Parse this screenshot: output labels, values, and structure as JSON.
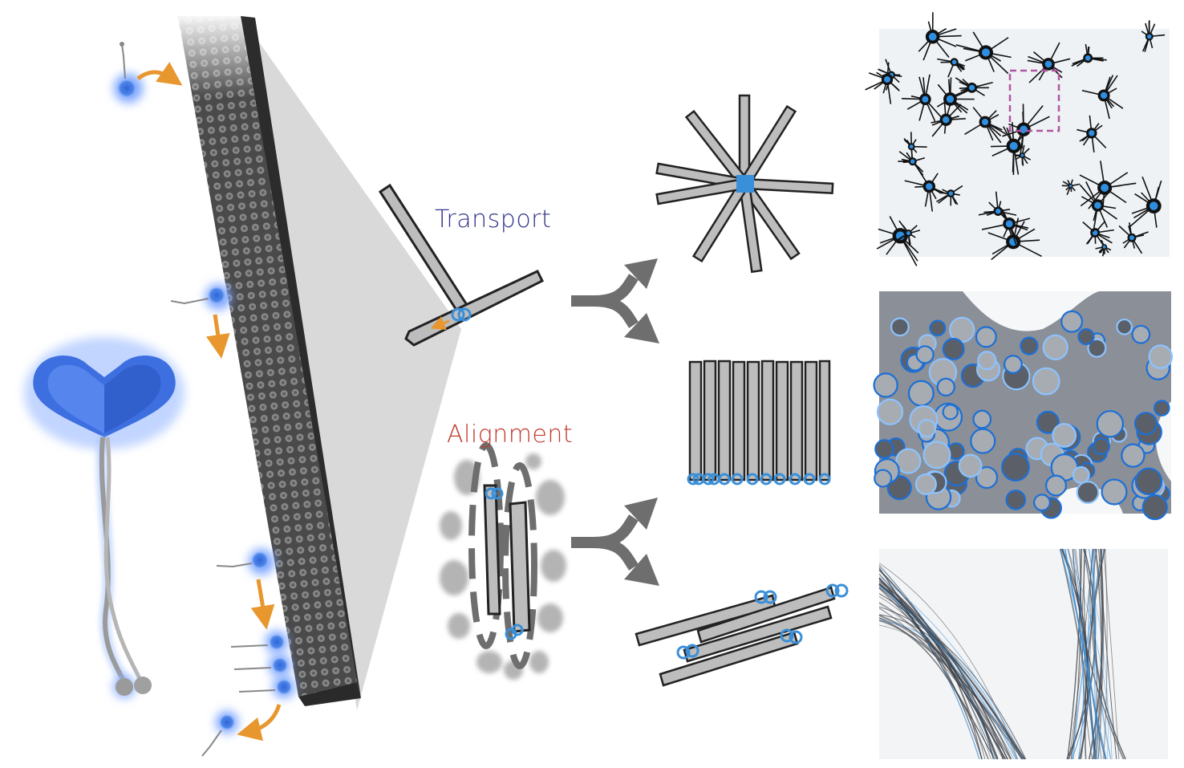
{
  "labels": {
    "transport": "Transport",
    "alignment": "Alignment"
  },
  "colors": {
    "transport_label": "#33338a",
    "alignment_label": "#c0392b",
    "motor_blue": "#3a8fd9",
    "arrow_orange": "#e8962e",
    "filament_fill": "#bdbdbd",
    "filament_stroke": "#222222",
    "arrow_gray": "#6e6e6e",
    "crop_box": "#b0569f"
  },
  "panels": {
    "aster_image": "aster micrograph",
    "network_image": "contractile network micrograph",
    "bundle_image": "nematic bundle micrograph"
  },
  "icons": {
    "microtubule": "microtubule-lattice",
    "motor": "kinesin-motor",
    "outcome_arrow": "split-arrow"
  }
}
